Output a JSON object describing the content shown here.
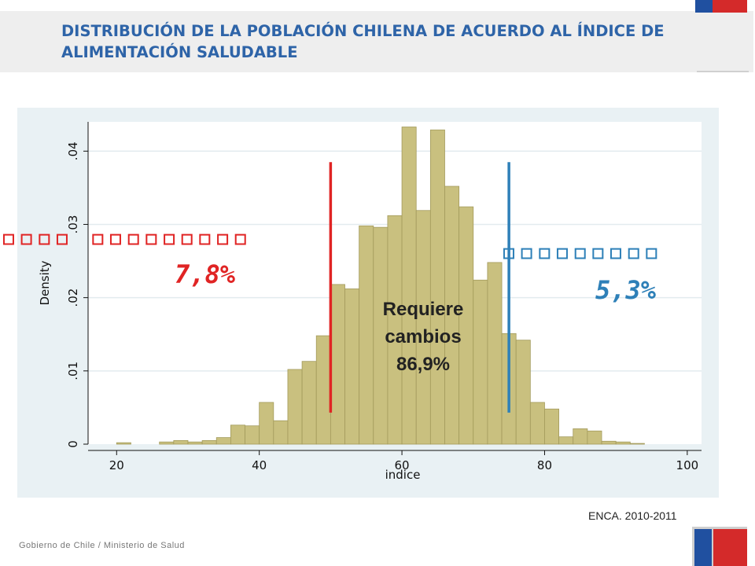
{
  "header": {
    "title": "DISTRIBUCIÓN DE LA POBLACIÓN CHILENA DE ACUERDO AL ÍNDICE DE ALIMENTACIÓN SALUDABLE"
  },
  "annotations": {
    "left_head": "▫▫▫▫ ▫▫▫▫▫▫▫▫▫",
    "left_pct": "7,8%",
    "right_head": "▫▫▫▫▫▫▫▫▫",
    "right_pct": "5,3%",
    "center": [
      "Requiere",
      "cambios",
      "86,9%"
    ]
  },
  "source": "ENCA. 2010-2011",
  "footer": "Gobierno de Chile / Ministerio de Salud",
  "colors": {
    "bar_fill": "#c9c07f",
    "bar_stroke": "#a39a5c",
    "left_line": "#e02424",
    "right_line": "#2e80b8",
    "plot_bg": "#ffffff",
    "outer_bg": "#e9f1f4",
    "title": "#2e64a8",
    "flag_blue": "#2050a0",
    "flag_red": "#d42a2a"
  },
  "chart_data": {
    "type": "bar",
    "xlabel": "indice",
    "ylabel": "Density",
    "xlim": [
      16,
      102
    ],
    "ylim": [
      0,
      0.044
    ],
    "xticks": [
      20,
      40,
      60,
      80,
      100
    ],
    "yticks": [
      0,
      0.01,
      0.02,
      0.03,
      0.04
    ],
    "ytick_labels": [
      "0",
      ".01",
      ".02",
      ".03",
      ".04"
    ],
    "grid": true,
    "bin_width": 2,
    "bins": [
      {
        "x0": 20,
        "y": 0.0002
      },
      {
        "x0": 26,
        "y": 0.0003
      },
      {
        "x0": 28,
        "y": 0.0005
      },
      {
        "x0": 30,
        "y": 0.0003
      },
      {
        "x0": 32,
        "y": 0.0005
      },
      {
        "x0": 34,
        "y": 0.0009
      },
      {
        "x0": 36,
        "y": 0.0026
      },
      {
        "x0": 38,
        "y": 0.0025
      },
      {
        "x0": 40,
        "y": 0.0057
      },
      {
        "x0": 42,
        "y": 0.0032
      },
      {
        "x0": 44,
        "y": 0.0102
      },
      {
        "x0": 46,
        "y": 0.0113
      },
      {
        "x0": 48,
        "y": 0.0148
      },
      {
        "x0": 50,
        "y": 0.0218
      },
      {
        "x0": 52,
        "y": 0.0212
      },
      {
        "x0": 54,
        "y": 0.0298
      },
      {
        "x0": 56,
        "y": 0.0296
      },
      {
        "x0": 58,
        "y": 0.0312
      },
      {
        "x0": 60,
        "y": 0.0433
      },
      {
        "x0": 62,
        "y": 0.0319
      },
      {
        "x0": 64,
        "y": 0.0429
      },
      {
        "x0": 66,
        "y": 0.0352
      },
      {
        "x0": 68,
        "y": 0.0324
      },
      {
        "x0": 70,
        "y": 0.0224
      },
      {
        "x0": 72,
        "y": 0.0248
      },
      {
        "x0": 74,
        "y": 0.0151
      },
      {
        "x0": 76,
        "y": 0.0142
      },
      {
        "x0": 78,
        "y": 0.0057
      },
      {
        "x0": 80,
        "y": 0.0048
      },
      {
        "x0": 82,
        "y": 0.001
      },
      {
        "x0": 84,
        "y": 0.0021
      },
      {
        "x0": 86,
        "y": 0.0018
      },
      {
        "x0": 88,
        "y": 0.0004
      },
      {
        "x0": 90,
        "y": 0.0003
      },
      {
        "x0": 92,
        "y": 0.0001
      }
    ],
    "reference_lines": [
      {
        "x": 50,
        "y_from": 0.0043,
        "y_to": 0.0385,
        "color": "#e02424"
      },
      {
        "x": 75,
        "y_from": 0.0043,
        "y_to": 0.0385,
        "color": "#2e80b8"
      }
    ]
  }
}
